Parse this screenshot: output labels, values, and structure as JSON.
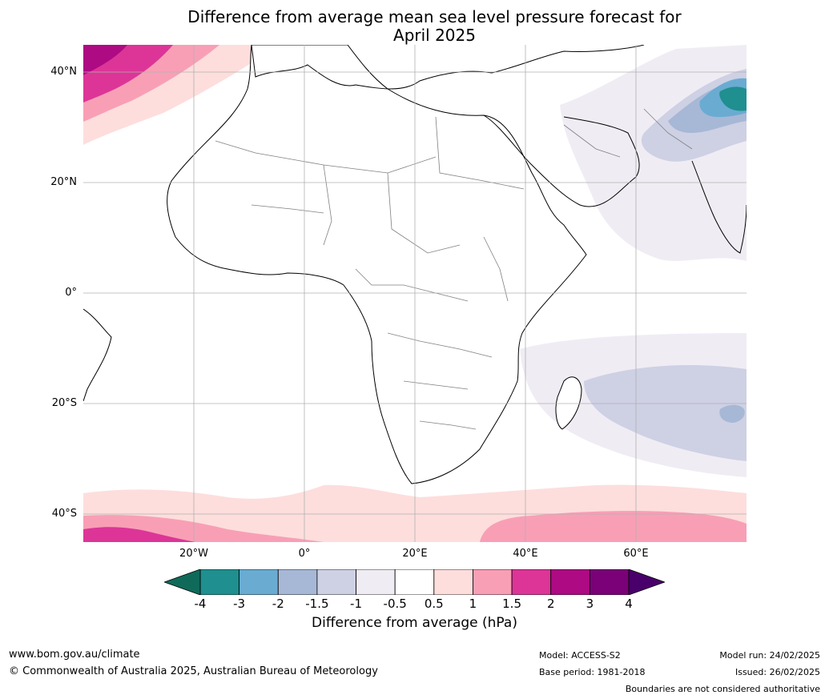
{
  "title": {
    "line1": "Difference from average mean sea level pressure forecast for",
    "line2": "April 2025"
  },
  "map": {
    "region": "Africa",
    "lat_labels": [
      "40°N",
      "20°N",
      "0°",
      "20°S",
      "40°S"
    ],
    "lon_labels": [
      "20°W",
      "0°",
      "20°E",
      "40°E",
      "60°E"
    ],
    "ocean_color": "#ffffff",
    "coastline_color": "#000000",
    "border_color": "#808080"
  },
  "colorbar": {
    "ticks": [
      "-4",
      "-3",
      "-2",
      "-1.5",
      "-1",
      "-0.5",
      "0.5",
      "1",
      "1.5",
      "2",
      "3",
      "4"
    ],
    "colors": [
      "#1f8f8f",
      "#6aabd2",
      "#a6b8d6",
      "#ced0e4",
      "#f0ecf4",
      "#ffffff",
      "#fddedc",
      "#f89fb6",
      "#dc3597",
      "#ad0a83",
      "#7a0177"
    ],
    "under_color": "#106a5a",
    "over_color": "#49006a",
    "label": "Difference from average (hPa)"
  },
  "footer": {
    "website": "www.bom.gov.au/climate",
    "copyright": "© Commonwealth of Australia 2025, Australian Bureau of Meteorology",
    "model": "Model: ACCESS-S2",
    "base_period": "Base period: 1981-2018",
    "model_run": "Model run: 24/02/2025",
    "issued": "Issued: 26/02/2025",
    "disclaimer": "Boundaries are not considered authoritative"
  }
}
